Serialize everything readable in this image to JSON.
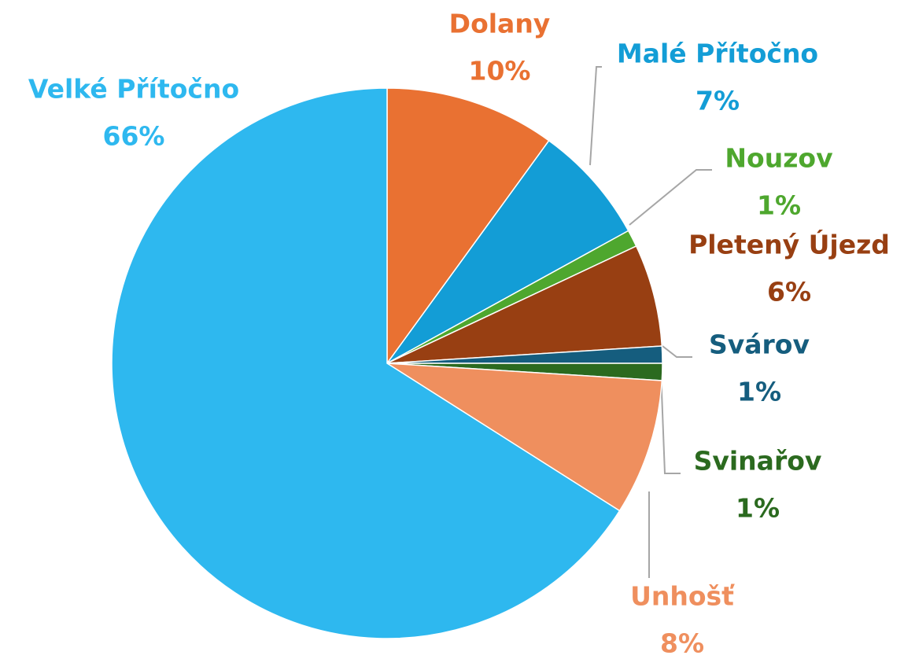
{
  "chart_data": {
    "type": "pie",
    "categories": [
      "Dolany",
      "Malé Přítočno",
      "Nouzov",
      "Pletený Újezd",
      "Svárov",
      "Svinařov",
      "Unhošť",
      "Velké Přítočno"
    ],
    "values": [
      10,
      7,
      1,
      6,
      1,
      1,
      8,
      66
    ],
    "value_labels": [
      "10%",
      "7%",
      "1%",
      "6%",
      "1%",
      "1%",
      "8%",
      "66%"
    ],
    "colors": [
      "#e97132",
      "#139dd6",
      "#4ea72e",
      "#983f12",
      "#155d7e",
      "#2b6a1f",
      "#ef8f5e",
      "#2eb8ef"
    ]
  }
}
